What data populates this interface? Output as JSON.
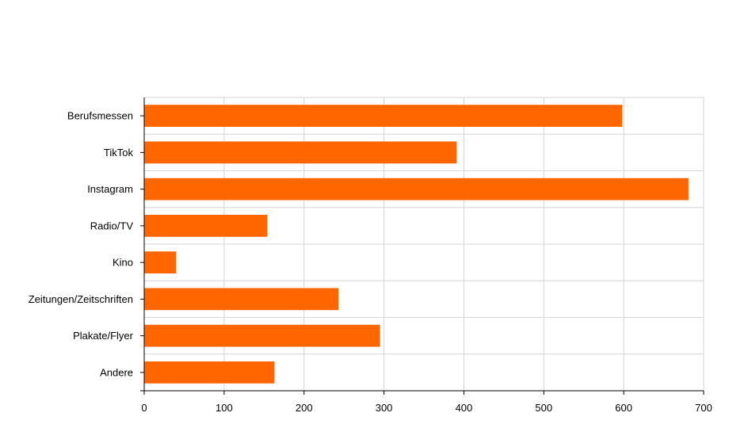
{
  "chart_data": {
    "type": "bar",
    "orientation": "horizontal",
    "categories": [
      "Berufsmessen",
      "TikTok",
      "Instagram",
      "Radio/TV",
      "Kino",
      "Zeitungen/Zeitschriften",
      "Plakate/Flyer",
      "Andere"
    ],
    "values": [
      598,
      391,
      681,
      154,
      40,
      243,
      295,
      163
    ],
    "xlim": [
      0,
      700
    ],
    "xticks": [
      0,
      100,
      200,
      300,
      400,
      500,
      600,
      700
    ],
    "grid": true,
    "legend": "none",
    "colors": {
      "bar": "#ff6600",
      "grid": "#d4d4d4",
      "axis": "#000000"
    }
  }
}
